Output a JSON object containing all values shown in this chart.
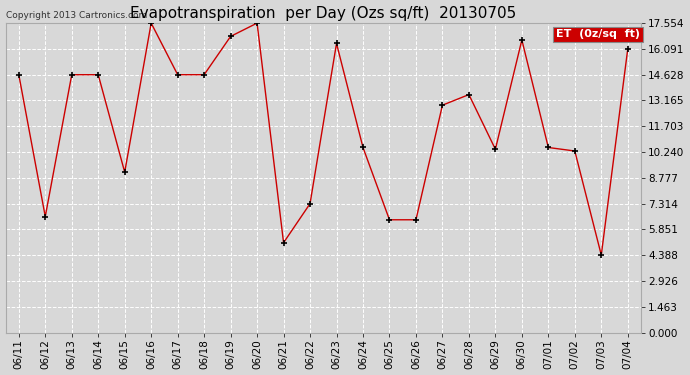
{
  "title": "Evapotranspiration  per Day (Ozs sq/ft)  20130705",
  "copyright": "Copyright 2013 Cartronics.com",
  "legend_label": "ET  (0z/sq  ft)",
  "x_labels": [
    "06/11",
    "06/12",
    "06/13",
    "06/14",
    "06/15",
    "06/16",
    "06/17",
    "06/18",
    "06/19",
    "06/20",
    "06/21",
    "06/22",
    "06/23",
    "06/24",
    "06/25",
    "06/26",
    "06/27",
    "06/28",
    "06/29",
    "06/30",
    "07/01",
    "07/02",
    "07/03",
    "07/04"
  ],
  "y_values": [
    14.628,
    6.583,
    14.628,
    14.628,
    9.1,
    17.554,
    14.628,
    14.628,
    16.8,
    17.554,
    5.1,
    7.314,
    16.4,
    10.5,
    6.4,
    6.4,
    12.9,
    13.5,
    10.4,
    16.6,
    10.5,
    10.3,
    4.4,
    16.091
  ],
  "y_ticks": [
    0.0,
    1.463,
    2.926,
    4.388,
    5.851,
    7.314,
    8.777,
    10.24,
    11.703,
    13.165,
    14.628,
    16.091,
    17.554
  ],
  "ylim": [
    0.0,
    17.554
  ],
  "line_color": "#cc0000",
  "marker_color": "#000000",
  "bg_color": "#d8d8d8",
  "plot_bg_color": "#d8d8d8",
  "grid_color": "#ffffff",
  "legend_bg": "#cc0000",
  "legend_text_color": "#ffffff",
  "title_fontsize": 11,
  "copyright_fontsize": 6.5,
  "tick_fontsize": 7.5,
  "legend_fontsize": 8
}
